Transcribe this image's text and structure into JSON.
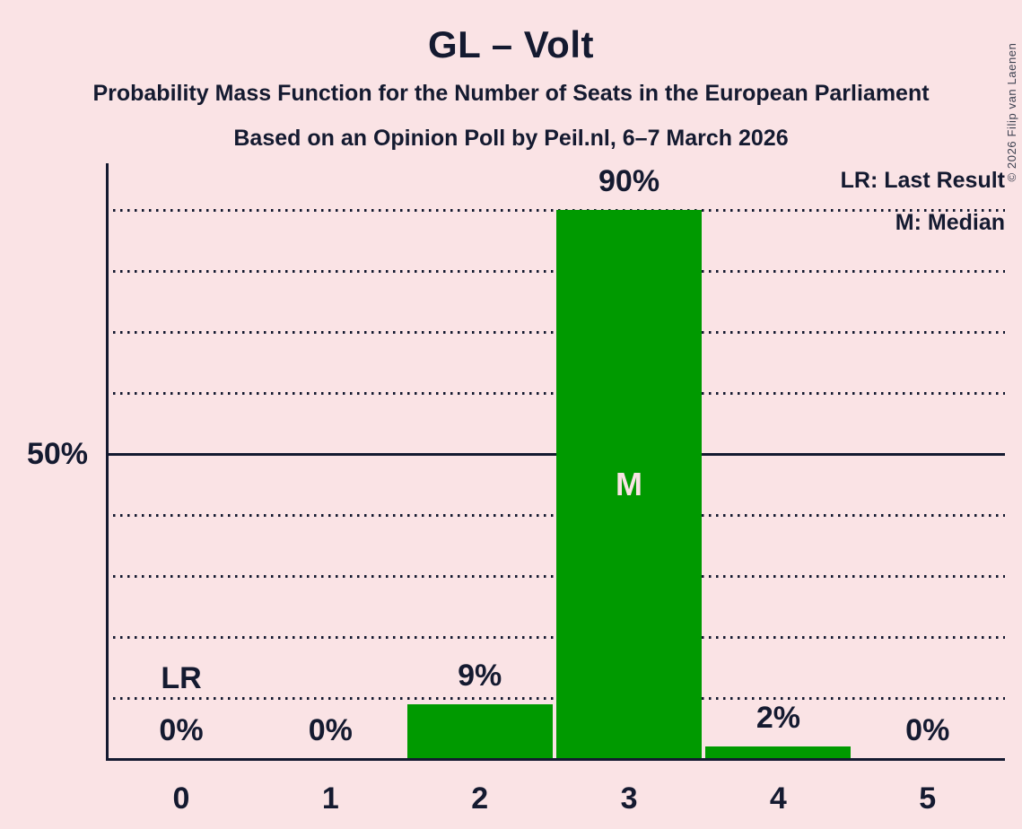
{
  "header": {
    "title": "GL – Volt",
    "subtitle1": "Probability Mass Function for the Number of Seats in the European Parliament",
    "subtitle2": "Based on an Opinion Poll by Peil.nl, 6–7 March 2026"
  },
  "legend": {
    "lr_label": "LR: Last Result",
    "m_label": "M: Median"
  },
  "credit": "© 2026 Filip van Laenen",
  "colors": {
    "background": "#FAE3E5",
    "bar_green": "#009A00",
    "text": "#141A30",
    "median_text": "#FAE3E5"
  },
  "chart_data": {
    "type": "bar",
    "title": "GL – Volt",
    "categories": [
      "0",
      "1",
      "2",
      "3",
      "4",
      "5"
    ],
    "values": [
      0,
      0,
      9,
      90,
      2,
      0
    ],
    "value_labels": [
      "0%",
      "0%",
      "9%",
      "90%",
      "2%",
      "0%"
    ],
    "y_tick_label": "50%",
    "y_tick_pct": 50,
    "ylim": [
      0,
      100
    ],
    "gridlines_pct": [
      10,
      20,
      30,
      40,
      50,
      60,
      70,
      80,
      90
    ],
    "solid_gridline_pct": 50,
    "grid": "dotted horizontal",
    "legend_position": "top-right",
    "annotations": {
      "last_result_seat": 0,
      "last_result_label": "LR",
      "median_seat": 3,
      "median_label": "M"
    }
  }
}
